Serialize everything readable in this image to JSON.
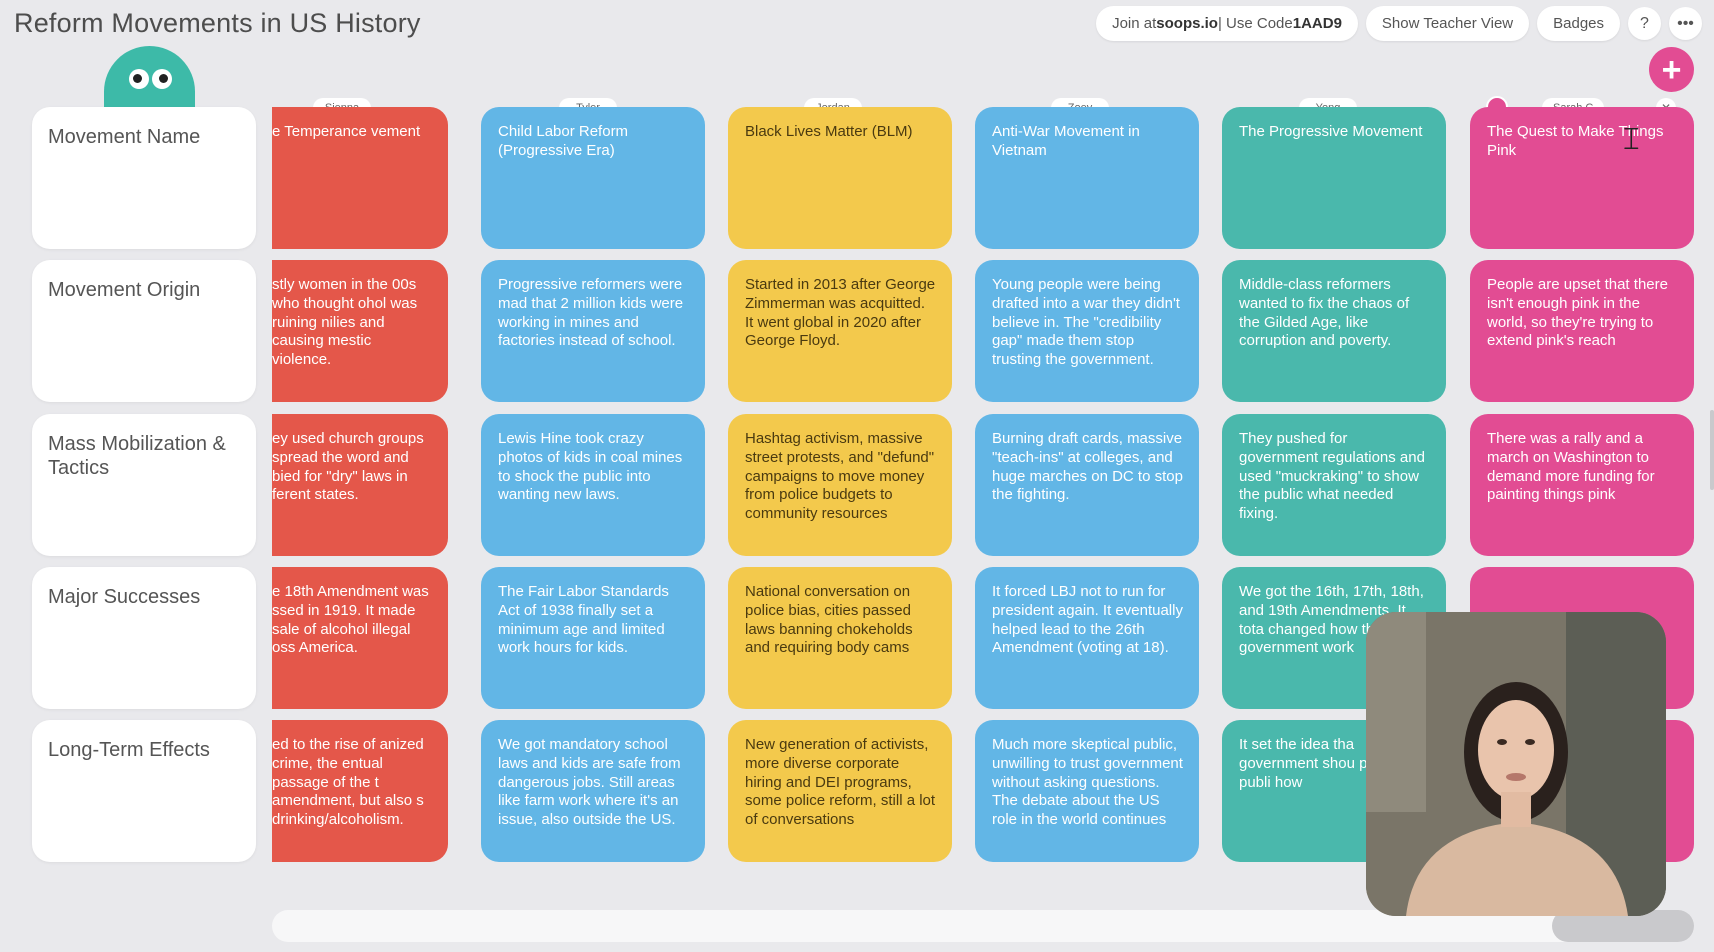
{
  "app": {
    "title": "Reform Movements in US History"
  },
  "toolbar": {
    "join_prefix": "Join at ",
    "join_site": "soops.io",
    "join_sep": " | Use Code ",
    "join_code": "1AAD9",
    "teacher_view": "Show Teacher View",
    "badges": "Badges",
    "help": "?",
    "more": "•••",
    "add": "+"
  },
  "row_labels": [
    "Movement Name",
    "Movement Origin",
    "Mass Mobilization & Tactics",
    "Major Successes",
    "Long-Term Effects"
  ],
  "columns": [
    {
      "author": "Sienna",
      "color": "#e4574a",
      "cells": [
        "e Temperance vement",
        "stly women in the 00s who thought ohol was ruining nilies and causing mestic violence.",
        "ey used church groups spread the word and bied for \"dry\" laws in ferent states.",
        "e 18th Amendment was ssed in 1919. It made sale of alcohol illegal oss America.",
        "ed to the rise of anized crime, the entual passage of the t amendment, but also s drinking/alcoholism."
      ]
    },
    {
      "author": "Tyler",
      "color": "#62b6e6",
      "cells": [
        "Child Labor Reform (Progressive Era)",
        "Progressive reformers were mad that 2 million kids were working in mines and factories instead of school.",
        "Lewis Hine took crazy photos of kids in coal mines to shock the public into wanting new laws.",
        "The Fair Labor Standards Act of 1938 finally set a minimum age and limited work hours for kids.",
        "We got mandatory school laws and kids are safe from dangerous jobs. Still areas like farm work where it's an issue, also outside the US."
      ]
    },
    {
      "author": "Jordan",
      "color": "#f3c94c",
      "cells": [
        "Black Lives Matter (BLM)",
        "Started in 2013 after George Zimmerman was acquitted. It went global in 2020 after George Floyd.",
        "Hashtag activism, massive street protests, and \"defund\" campaigns to move money from police budgets to community resources",
        "National conversation on police bias, cities passed laws banning chokeholds and requiring body cams",
        "New generation of activists, more diverse corporate hiring and DEI programs, some police reform, still a lot of conversations"
      ]
    },
    {
      "author": "Zoey",
      "color": "#62b6e6",
      "cells": [
        "Anti-War Movement in Vietnam",
        "Young people were being drafted into a war they didn't believe in. The \"credibility gap\" made them stop trusting the government.",
        "Burning draft cards, massive \"teach-ins\" at colleges, and huge marches on DC to stop the fighting.",
        "It forced LBJ not to run for president again. It eventually helped lead to the 26th Amendment (voting at 18).",
        "Much more skeptical public, unwilling to trust government without asking questions. The debate about the US role in the world continues"
      ]
    },
    {
      "author": "Yong",
      "color": "#4ab8ac",
      "cells": [
        "The Progressive Movement",
        "Middle-class reformers wanted to fix the chaos of the Gilded Age, like corruption and poverty.",
        "They pushed for government regulations and used \"muckraking\" to show the public what needed fixing.",
        "We got the 16th, 17th, 18th, and 19th Amendments. It tota changed how the government work",
        "It set the idea tha government shou protect the publi how"
      ]
    },
    {
      "author": "Sarah C",
      "color": "#e24c93",
      "cells": [
        "The Quest to Make Things Pink",
        "People are upset that there isn't enough pink in the world, so they're trying to extend pink's reach",
        "There was a rally and a march on Washington to demand more funding for painting things pink",
        "",
        ""
      ]
    }
  ],
  "icons": {
    "mascot": "mascot-eyes-icon",
    "add": "plus-icon",
    "close": "close-icon",
    "cursor": "text-cursor-icon"
  }
}
